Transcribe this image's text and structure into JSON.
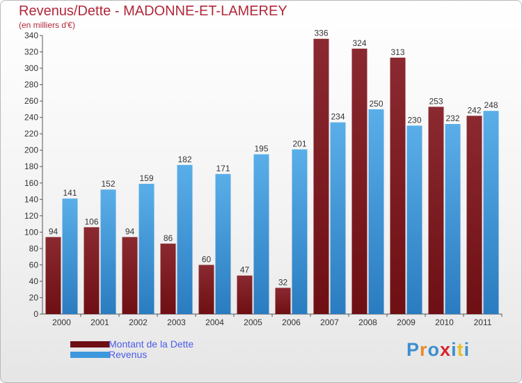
{
  "title": "Revenus/Dette - MADONNE-ET-LAMEREY",
  "subtitle": "(en milliers d'€)",
  "logo": {
    "text": "Proxiti",
    "letter_colors": [
      "#3b8fd1",
      "#e8892a",
      "#3b8fd1",
      "#d9252d",
      "#3b8fd1",
      "#e8c02a",
      "#3b8fd1"
    ]
  },
  "colors": {
    "dette": "#6e0f14",
    "revenus": "#3d97dc"
  },
  "chart_data": {
    "type": "bar",
    "title": "Revenus/Dette - MADONNE-ET-LAMEREY",
    "ylabel": "(en milliers d'€)",
    "categories": [
      "2000",
      "2001",
      "2002",
      "2003",
      "2004",
      "2005",
      "2006",
      "2007",
      "2008",
      "2009",
      "2010",
      "2011"
    ],
    "series": [
      {
        "name": "Montant de la Dette",
        "values": [
          94,
          106,
          94,
          86,
          60,
          47,
          32,
          336,
          324,
          313,
          253,
          242
        ]
      },
      {
        "name": "Revenus",
        "values": [
          141,
          152,
          159,
          182,
          171,
          195,
          201,
          234,
          250,
          230,
          232,
          248
        ]
      }
    ],
    "ylim": [
      0,
      340
    ],
    "yticks": [
      0,
      20,
      40,
      60,
      80,
      100,
      120,
      140,
      160,
      180,
      200,
      220,
      240,
      260,
      280,
      300,
      320,
      340
    ],
    "grid": false,
    "legend": "bottom-left"
  }
}
